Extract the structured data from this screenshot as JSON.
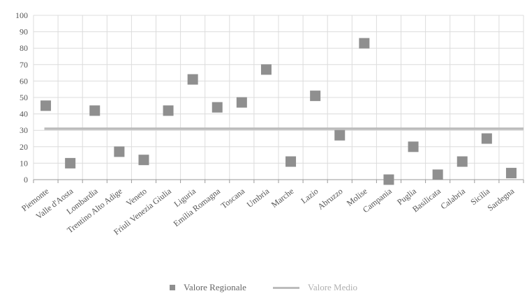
{
  "chart_data": {
    "type": "scatter",
    "categories": [
      "Piemonte",
      "Valle d'Aosta",
      "Lombardia",
      "Trentino Alto Adige",
      "Veneto",
      "Friuli Venezia Giulia",
      "Liguria",
      "Emilia Romagna",
      "Toscana",
      "Umbria",
      "Marche",
      "Lazio",
      "Abruzzo",
      "Molise",
      "Campania",
      "Puglia",
      "Basilicata",
      "Calabria",
      "Sicilia",
      "Sardegna"
    ],
    "series": [
      {
        "name": "Valore Regionale",
        "values": [
          45,
          10,
          42,
          17,
          12,
          42,
          61,
          44,
          47,
          67,
          11,
          51,
          27,
          83,
          0,
          20,
          3,
          11,
          25,
          4
        ],
        "color": "#8f8f8f"
      },
      {
        "name": "Valore Medio",
        "value": 31,
        "color": "#bcbcbc"
      }
    ],
    "yticks": [
      "0",
      "10",
      "20",
      "30",
      "40",
      "50",
      "60",
      "70",
      "80",
      "90",
      "100"
    ],
    "ylim": [
      0,
      100
    ],
    "grid": true,
    "legend_position": "bottom"
  }
}
